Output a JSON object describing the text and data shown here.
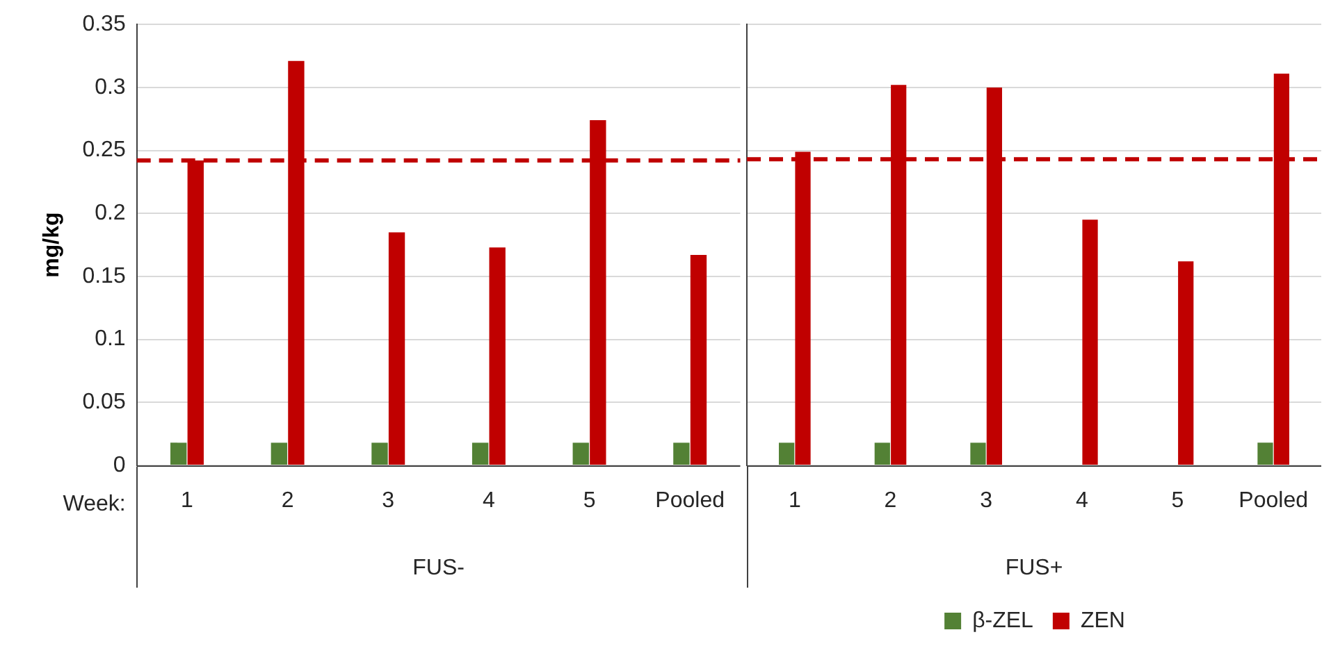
{
  "chart_data": [
    {
      "type": "bar",
      "xlabel": "FUS-",
      "ylabel": "mg/kg",
      "categories": [
        "1",
        "2",
        "3",
        "4",
        "5",
        "Pooled"
      ],
      "series": [
        {
          "color": "#538135",
          "values": [
            0.018,
            0.018,
            0.018,
            0.018,
            0.018,
            0.018
          ]
        },
        {
          "color": "#c00000",
          "values": [
            0.242,
            0.321,
            0.185,
            0.173,
            0.274,
            0.167
          ]
        }
      ],
      "ylim": [
        0,
        0.35
      ],
      "yticks": [
        0,
        0.05,
        0.1,
        0.15,
        0.2,
        0.25,
        0.3,
        0.35
      ],
      "ref_lines": [
        {
          "axis": "y",
          "value": 0.242,
          "color": "#c00000",
          "line_style": "dashed"
        }
      ],
      "annotations": [
        "Week:"
      ],
      "grid": "y"
    },
    {
      "type": "bar",
      "xlabel": "FUS+",
      "categories": [
        "1",
        "2",
        "3",
        "4",
        "5",
        "Pooled"
      ],
      "series": [
        {
          "name": "β-ZEL",
          "color": "#538135",
          "values": [
            0.018,
            0.018,
            0.018,
            null,
            null,
            0.018
          ]
        },
        {
          "name": "ZEN",
          "color": "#c00000",
          "values": [
            0.249,
            0.302,
            0.3,
            0.195,
            0.162,
            0.311
          ]
        }
      ],
      "ylim": [
        0,
        0.35
      ],
      "yticks": [
        0,
        0.05,
        0.1,
        0.15,
        0.2,
        0.25,
        0.3,
        0.35
      ],
      "ref_lines": [
        {
          "axis": "y",
          "value": 0.243,
          "color": "#c00000",
          "line_style": "dashed"
        }
      ],
      "tick_labels": "x",
      "grid": "y",
      "legend": "bottom"
    }
  ]
}
